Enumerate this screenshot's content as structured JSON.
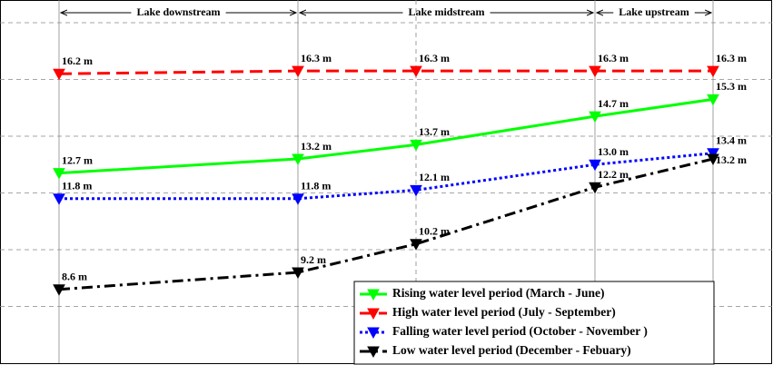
{
  "chart_data": {
    "type": "line",
    "categories": [
      null,
      null,
      null,
      null,
      null
    ],
    "zones": [
      "Lake downstream",
      "Lake midstream",
      "Lake upstream"
    ],
    "series": [
      {
        "name": "Rising water level period (March - June)",
        "color": "#00ff00",
        "dash": "solid",
        "values": [
          12.7,
          13.2,
          13.7,
          14.7,
          15.3
        ],
        "value_labels": [
          "12.7 m",
          "13.2 m",
          "13.7 m",
          "14.7 m",
          "15.3 m"
        ]
      },
      {
        "name": "High water level period (July - September)",
        "color": "#ff0000",
        "dash": "dashed",
        "values": [
          16.2,
          16.3,
          16.3,
          16.3,
          16.3
        ],
        "value_labels": [
          "16.2 m",
          "16.3 m",
          "16.3 m",
          "16.3 m",
          "16.3 m"
        ]
      },
      {
        "name": "Falling water level period (October - November )",
        "color": "#0000ff",
        "dash": "dotted",
        "values": [
          11.8,
          11.8,
          12.1,
          13.0,
          13.4
        ],
        "value_labels": [
          "11.8 m",
          "11.8 m",
          "12.1 m",
          "13.0 m",
          "13.4 m"
        ]
      },
      {
        "name": "Low water level period (December - Febuary)",
        "color": "#000000",
        "dash": "dashdot",
        "values": [
          8.6,
          9.2,
          10.2,
          12.2,
          13.2
        ],
        "value_labels": [
          "8.6 m",
          "9.2 m",
          "10.2 m",
          "12.2 m",
          "13.2 m"
        ]
      }
    ],
    "ylim": [
      6,
      18.8
    ],
    "yticks": [
      8,
      10,
      12,
      14,
      16,
      18
    ],
    "grid": true,
    "legend": "lower right"
  }
}
